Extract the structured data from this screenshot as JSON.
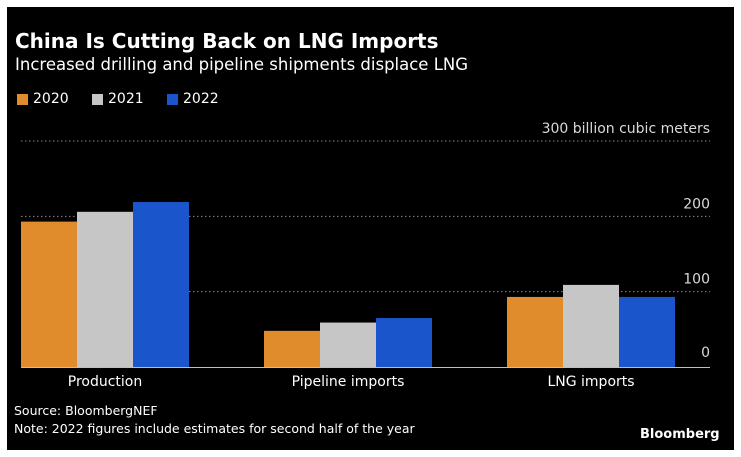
{
  "header": {
    "title": "China Is Cutting Back on LNG Imports",
    "subtitle": "Increased drilling and pipeline shipments displace LNG"
  },
  "footer": {
    "source": "Source: BloombergNEF",
    "note": "Note: 2022 figures include estimates for second half of the year",
    "brand": "Bloomberg"
  },
  "chart_data": {
    "type": "bar",
    "title": "China Is Cutting Back on LNG Imports",
    "subtitle": "Increased drilling and pipeline shipments displace LNG",
    "categories": [
      "Production",
      "Pipeline imports",
      "LNG imports"
    ],
    "series": [
      {
        "name": "2020",
        "color": "#e08c2c",
        "values": [
          193,
          48,
          93
        ]
      },
      {
        "name": "2021",
        "color": "#c6c6c6",
        "values": [
          206,
          59,
          109
        ]
      },
      {
        "name": "2022",
        "color": "#1a55cc",
        "values": [
          219,
          65,
          93
        ]
      }
    ],
    "ylim": [
      0,
      300
    ],
    "yticks": [
      0,
      100,
      200,
      300
    ],
    "ytick_labels": [
      "0",
      "100",
      "200",
      "300 billion cubic meters"
    ],
    "ylabel": "billion cubic meters",
    "grid": true,
    "legend_position": "top-left"
  }
}
